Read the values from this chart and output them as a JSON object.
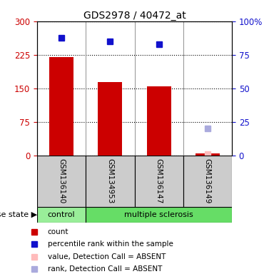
{
  "title": "GDS2978 / 40472_at",
  "samples": [
    "GSM136140",
    "GSM134953",
    "GSM136147",
    "GSM136149"
  ],
  "bar_values": [
    220,
    165,
    155,
    5
  ],
  "bar_color": "#cc0000",
  "blue_dots": [
    88,
    85,
    83,
    null
  ],
  "blue_dot_color": "#1111cc",
  "absent_rank": [
    null,
    null,
    null,
    20
  ],
  "absent_rank_color": "#aaaadd",
  "absent_value_left": [
    null,
    null,
    null,
    3
  ],
  "absent_value_color": "#ffbbbb",
  "left_ylim": [
    0,
    300
  ],
  "left_yticks": [
    0,
    75,
    150,
    225,
    300
  ],
  "right_ylim": [
    0,
    100
  ],
  "right_yticks": [
    0,
    25,
    50,
    75,
    100
  ],
  "right_ytick_labels": [
    "0",
    "25",
    "50",
    "75",
    "100%"
  ],
  "left_tick_color": "#cc0000",
  "right_tick_color": "#1111cc",
  "group_labels": [
    "control",
    "multiple sclerosis"
  ],
  "group_color_control": "#99ee99",
  "group_color_ms": "#66dd66",
  "cell_bg": "#cccccc",
  "disease_state_label": "disease state",
  "legend_items": [
    {
      "label": "count",
      "color": "#cc0000"
    },
    {
      "label": "percentile rank within the sample",
      "color": "#1111cc"
    },
    {
      "label": "value, Detection Call = ABSENT",
      "color": "#ffbbbb"
    },
    {
      "label": "rank, Detection Call = ABSENT",
      "color": "#aaaadd"
    }
  ],
  "bg_color": "#ffffff",
  "bar_width": 0.5,
  "marker_size": 6
}
